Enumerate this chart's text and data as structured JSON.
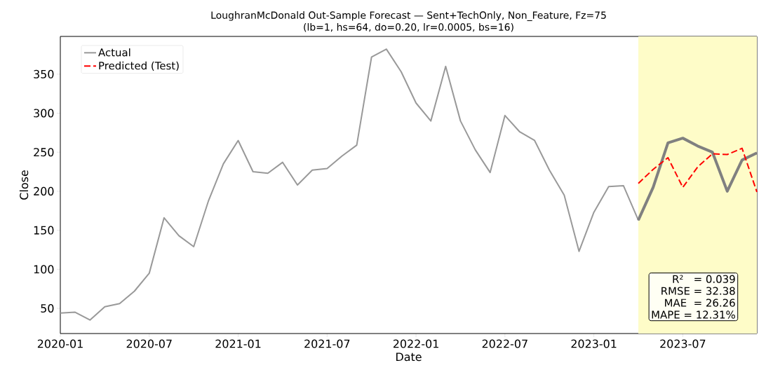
{
  "chart_data": {
    "type": "line",
    "title": "LoughranMcDonald Out-Sample Forecast — Sent+TechOnly, Non_Feature, Fz=75",
    "subtitle": "(lb=1, hs=64, do=0.20, lr=0.0005, bs=16)",
    "xlabel": "Date",
    "ylabel": "Close",
    "x": [
      "2020-01",
      "2020-02",
      "2020-03",
      "2020-04",
      "2020-05",
      "2020-06",
      "2020-07",
      "2020-08",
      "2020-09",
      "2020-10",
      "2020-11",
      "2020-12",
      "2021-01",
      "2021-02",
      "2021-03",
      "2021-04",
      "2021-05",
      "2021-06",
      "2021-07",
      "2021-08",
      "2021-09",
      "2021-10",
      "2021-11",
      "2021-12",
      "2022-01",
      "2022-02",
      "2022-03",
      "2022-04",
      "2022-05",
      "2022-06",
      "2022-07",
      "2022-08",
      "2022-09",
      "2022-10",
      "2022-11",
      "2022-12",
      "2023-01",
      "2023-02",
      "2023-03",
      "2023-04",
      "2023-05",
      "2023-06",
      "2023-07",
      "2023-08",
      "2023-09",
      "2023-10",
      "2023-11",
      "2023-12"
    ],
    "series": [
      {
        "name": "Actual",
        "color": "#999999",
        "line_style": "solid",
        "values": [
          44,
          45,
          35,
          52,
          56,
          72,
          95,
          166,
          143,
          129,
          188,
          235,
          265,
          225,
          223,
          237,
          208,
          227,
          229,
          245,
          259,
          372,
          382,
          353,
          313,
          290,
          360,
          290,
          253,
          224,
          297,
          276,
          265,
          227,
          195,
          123,
          173,
          206,
          207,
          163,
          205,
          262,
          268,
          258,
          250,
          200,
          240,
          249
        ]
      },
      {
        "color": "#808080",
        "line_style": "solid",
        "x": [
          "2023-04",
          "2023-05",
          "2023-06",
          "2023-07",
          "2023-08",
          "2023-09",
          "2023-10",
          "2023-11",
          "2023-12"
        ],
        "values": [
          163,
          205,
          262,
          268,
          258,
          250,
          200,
          240,
          249
        ]
      },
      {
        "name": "Predicted (Test)",
        "color": "#ff0000",
        "line_style": "dashed",
        "x": [
          "2023-04",
          "2023-05",
          "2023-06",
          "2023-07",
          "2023-08",
          "2023-09",
          "2023-10",
          "2023-11",
          "2023-12"
        ],
        "values": [
          210,
          228,
          243,
          205,
          231,
          248,
          247,
          255,
          199
        ]
      }
    ],
    "xlim": [
      "2020-01",
      "2023-12"
    ],
    "xticks": [
      "2020-01",
      "2020-07",
      "2021-01",
      "2021-07",
      "2022-01",
      "2022-07",
      "2023-01",
      "2023-07"
    ],
    "ylim": [
      17.7,
      398.3
    ],
    "yticks": [
      50,
      100,
      150,
      200,
      250,
      300,
      350
    ],
    "bands": [
      {
        "axis": "x",
        "from": "2023-04",
        "to": "2023-12",
        "color": "#fefcc8"
      }
    ],
    "annotations": [
      "R²   = 0.039",
      "RMSE = 32.38",
      "MAE  = 26.26",
      "MAPE = 12.31%"
    ],
    "legend": "top left",
    "grid": false,
    "marker": "none"
  }
}
